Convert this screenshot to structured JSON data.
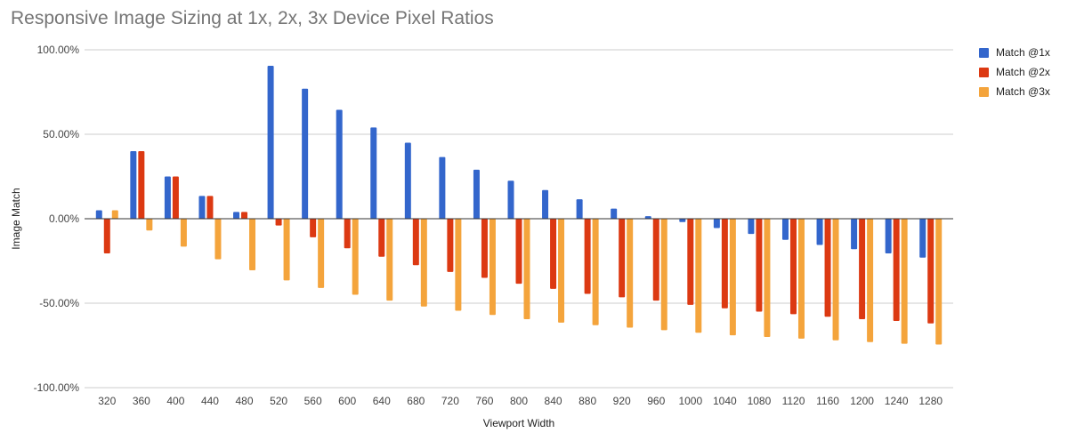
{
  "chart_data": {
    "type": "bar",
    "title": "Responsive Image Sizing at 1x, 2x, 3x Device Pixel Ratios",
    "xlabel": "Viewport Width",
    "ylabel": "Image Match",
    "ylim": [
      -100,
      100
    ],
    "yticks": [
      "100.00%",
      "50.00%",
      "0.00%",
      "-50.00%",
      "-100.00%"
    ],
    "ytick_values": [
      100,
      50,
      0,
      -50,
      -100
    ],
    "grid": true,
    "legend_position": "right",
    "categories": [
      "320",
      "360",
      "400",
      "440",
      "480",
      "520",
      "560",
      "600",
      "640",
      "680",
      "720",
      "760",
      "800",
      "840",
      "880",
      "920",
      "960",
      "1000",
      "1040",
      "1080",
      "1120",
      "1160",
      "1200",
      "1240",
      "1280"
    ],
    "series": [
      {
        "name": "Match @1x",
        "color": "#3366cc",
        "values": [
          5,
          40,
          25,
          13.5,
          4,
          90.5,
          77,
          64.5,
          54,
          45,
          36.5,
          29,
          22.5,
          17,
          11.5,
          6,
          1.5,
          -2,
          -5.5,
          -9,
          -12.5,
          -15.5,
          -18,
          -20.5,
          -23
        ]
      },
      {
        "name": "Match @2x",
        "color": "#dc3912",
        "values": [
          -20.5,
          40,
          25,
          13.5,
          4,
          -4,
          -11,
          -17.5,
          -22.5,
          -27.5,
          -31.5,
          -35,
          -38.5,
          -41.5,
          -44.5,
          -46.5,
          -48.5,
          -51,
          -53,
          -55,
          -56.5,
          -58,
          -59.5,
          -60.5,
          -62
        ]
      },
      {
        "name": "Match @3x",
        "color": "#f4a43c",
        "values": [
          5,
          -7,
          -16.5,
          -24,
          -30.5,
          -36.5,
          -41,
          -45,
          -48.5,
          -52,
          -54.5,
          -57,
          -59.5,
          -61.5,
          -63,
          -64.5,
          -66,
          -67.5,
          -69,
          -70,
          -71,
          -72,
          -73,
          -74,
          -74.5
        ]
      }
    ]
  }
}
